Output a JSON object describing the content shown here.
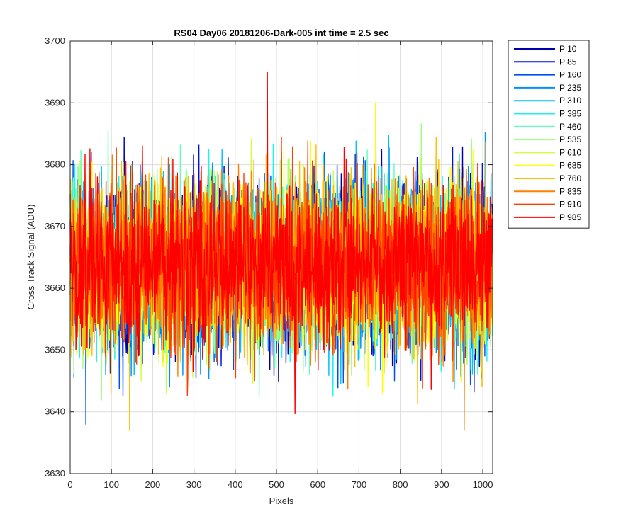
{
  "chart_data": {
    "type": "line",
    "title": "RS04 Day06 20181206-Dark-005 int time = 2.5 sec",
    "xlabel": "Pixels",
    "ylabel": "Cross Track Signal (ADU)",
    "xlim": [
      0,
      1024
    ],
    "ylim": [
      3630,
      3700
    ],
    "xticks": [
      0,
      100,
      200,
      300,
      400,
      500,
      600,
      700,
      800,
      900,
      1000
    ],
    "yticks": [
      3630,
      3640,
      3650,
      3660,
      3670,
      3680,
      3690,
      3700
    ],
    "grid": true,
    "legend_position": "outside-top-right",
    "n_points_per_series": 1024,
    "noise_model": {
      "mean": 3664,
      "std_dev": 6.5,
      "min_observed": 3637,
      "max_observed": 3695
    },
    "series": [
      {
        "name": "P 10",
        "color": "#0000aa"
      },
      {
        "name": "P 85",
        "color": "#0011dd"
      },
      {
        "name": "P 160",
        "color": "#0050f0"
      },
      {
        "name": "P 235",
        "color": "#0090ff"
      },
      {
        "name": "P 310",
        "color": "#00c0ff"
      },
      {
        "name": "P 385",
        "color": "#20f0f0"
      },
      {
        "name": "P 460",
        "color": "#60ffc0"
      },
      {
        "name": "P 535",
        "color": "#a0ff80"
      },
      {
        "name": "P 610",
        "color": "#d0ff40"
      },
      {
        "name": "P 685",
        "color": "#ffff00"
      },
      {
        "name": "P 760",
        "color": "#ffc000"
      },
      {
        "name": "P 835",
        "color": "#ff8000"
      },
      {
        "name": "P 910",
        "color": "#ff4000"
      },
      {
        "name": "P 985",
        "color": "#ff0000"
      }
    ],
    "notable_points": [
      {
        "series": "P 985",
        "x": 478,
        "y": 3695
      },
      {
        "series": "P 685",
        "x": 740,
        "y": 3690
      },
      {
        "series": "P 160",
        "x": 38,
        "y": 3638
      },
      {
        "series": "P 760",
        "x": 144,
        "y": 3637
      },
      {
        "series": "P 835",
        "x": 955,
        "y": 3637
      }
    ]
  }
}
